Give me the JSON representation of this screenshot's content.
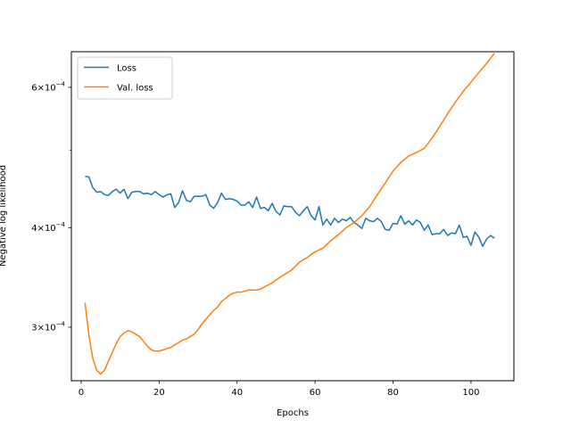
{
  "chart_data": {
    "type": "line",
    "xlabel": "Epochs",
    "ylabel": "Negative log likelihood",
    "xlim": [
      -2.5,
      111
    ],
    "ylim": [
      0.000257,
      0.000665
    ],
    "yscale": "log",
    "grid": false,
    "legend_position": "top-left",
    "x_ticks": [
      {
        "value": 0,
        "label": "0"
      },
      {
        "value": 20,
        "label": "20"
      },
      {
        "value": 40,
        "label": "40"
      },
      {
        "value": 60,
        "label": "60"
      },
      {
        "value": 80,
        "label": "80"
      },
      {
        "value": 100,
        "label": "100"
      }
    ],
    "y_ticks": [
      {
        "value": 0.0003,
        "base": "3",
        "exp": "−4"
      },
      {
        "value": 0.0004,
        "base": "4",
        "exp": "−4"
      },
      {
        "value": 0.0006,
        "base": "6",
        "exp": "−4"
      }
    ],
    "times_symbol": "×10",
    "series": [
      {
        "name": "Loss",
        "color": "#1f77b4",
        "x": [
          1,
          2,
          3,
          4,
          5,
          6,
          7,
          8,
          9,
          10,
          11,
          12,
          13,
          14,
          15,
          16,
          17,
          18,
          19,
          20,
          21,
          22,
          23,
          24,
          25,
          26,
          27,
          28,
          29,
          30,
          31,
          32,
          33,
          34,
          35,
          36,
          37,
          38,
          39,
          40,
          41,
          42,
          43,
          44,
          45,
          46,
          47,
          48,
          49,
          50,
          51,
          52,
          53,
          54,
          55,
          56,
          57,
          58,
          59,
          60,
          61,
          62,
          63,
          64,
          65,
          66,
          67,
          68,
          69,
          70,
          71,
          72,
          73,
          74,
          75,
          76,
          77,
          78,
          79,
          80,
          81,
          82,
          83,
          84,
          85,
          86,
          87,
          88,
          89,
          90,
          91,
          92,
          93,
          94,
          95,
          96,
          97,
          98,
          99,
          100,
          101,
          102,
          103,
          104,
          105,
          106
        ],
        "y": [
          0.000464,
          0.000463,
          0.000449,
          0.000443,
          0.000444,
          0.00044,
          0.000439,
          0.000444,
          0.000447,
          0.000442,
          0.000447,
          0.000435,
          0.000443,
          0.000444,
          0.000444,
          0.000441,
          0.000442,
          0.00044,
          0.000444,
          0.00044,
          0.000437,
          0.00044,
          0.000441,
          0.000424,
          0.00043,
          0.000445,
          0.000433,
          0.000431,
          0.000438,
          0.000438,
          0.000438,
          0.00044,
          0.000427,
          0.000423,
          0.00043,
          0.000442,
          0.000434,
          0.000435,
          0.000434,
          0.000432,
          0.000427,
          0.000427,
          0.000431,
          0.000424,
          0.000437,
          0.000423,
          0.000424,
          0.00042,
          0.000429,
          0.000419,
          0.000415,
          0.000426,
          0.000425,
          0.000425,
          0.000418,
          0.000414,
          0.00042,
          0.000425,
          0.000414,
          0.000409,
          0.000425,
          0.000403,
          0.00041,
          0.000403,
          0.000411,
          0.000406,
          0.00041,
          0.000408,
          0.000412,
          0.000406,
          0.000403,
          0.000399,
          0.000411,
          0.000408,
          0.000407,
          0.000411,
          0.000407,
          0.000398,
          0.000397,
          0.000405,
          0.000404,
          0.000414,
          0.000404,
          0.000408,
          0.000403,
          0.000409,
          0.000406,
          0.000397,
          0.000403,
          0.000392,
          0.000393,
          0.000393,
          0.000398,
          0.000391,
          0.000394,
          0.000393,
          0.000403,
          0.000389,
          0.00039,
          0.00038,
          0.000395,
          0.000389,
          0.000379,
          0.000387,
          0.000391,
          0.000388
        ]
      },
      {
        "name": "Val. loss",
        "color": "#ff7f0e",
        "x": [
          1,
          2,
          3,
          4,
          5,
          6,
          7,
          8,
          9,
          10,
          11,
          12,
          13,
          14,
          15,
          16,
          17,
          18,
          19,
          20,
          21,
          22,
          23,
          24,
          25,
          26,
          27,
          28,
          29,
          30,
          31,
          32,
          33,
          34,
          35,
          36,
          37,
          38,
          39,
          40,
          41,
          42,
          43,
          44,
          45,
          46,
          47,
          48,
          49,
          50,
          52,
          54,
          56,
          58,
          60,
          62,
          64,
          66,
          68,
          70,
          72,
          74,
          76,
          78,
          80,
          82,
          84,
          86,
          88,
          90,
          92,
          94,
          96,
          98,
          100,
          102,
          104,
          106
        ],
        "y": [
          0.000322,
          0.000293,
          0.000274,
          0.000265,
          0.000262,
          0.000265,
          0.000272,
          0.000279,
          0.000286,
          0.000292,
          0.000295,
          0.000297,
          0.000296,
          0.000294,
          0.000292,
          0.000288,
          0.000284,
          0.000281,
          0.00028,
          0.00028,
          0.000281,
          0.000282,
          0.000283,
          0.000285,
          0.000287,
          0.000289,
          0.00029,
          0.000292,
          0.000294,
          0.000298,
          0.000303,
          0.000307,
          0.000311,
          0.000315,
          0.000318,
          0.000323,
          0.000326,
          0.000329,
          0.000331,
          0.000332,
          0.000332,
          0.000333,
          0.000334,
          0.000334,
          0.000334,
          0.000335,
          0.000337,
          0.000339,
          0.000341,
          0.000344,
          0.000349,
          0.000354,
          0.000362,
          0.000367,
          0.000373,
          0.000377,
          0.000385,
          0.000392,
          0.0004,
          0.000406,
          0.000414,
          0.000425,
          0.00044,
          0.000455,
          0.000471,
          0.000483,
          0.000492,
          0.000497,
          0.000503,
          0.000518,
          0.000536,
          0.000556,
          0.000575,
          0.000593,
          0.000609,
          0.000626,
          0.000643,
          0.000662
        ]
      }
    ]
  }
}
